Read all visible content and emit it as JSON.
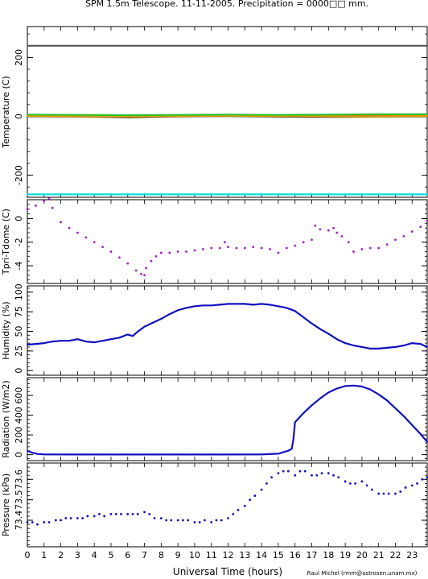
{
  "title": "SPM 1.5m Telescope. 11-11-2005. Precipitation = 0000□□ mm.",
  "xlabel": "Universal Time (hours)",
  "credit": "Raul Michel (rmm@astrosen.unam.mx)",
  "x_ticks": [
    "0",
    "1",
    "2",
    "3",
    "4",
    "5",
    "6",
    "7",
    "8",
    "9",
    "10",
    "11",
    "12",
    "13",
    "14",
    "15",
    "16",
    "17",
    "18",
    "19",
    "20",
    "21",
    "22",
    "23"
  ],
  "chart_data": [
    {
      "type": "line",
      "ylabel": "Temperature (C)",
      "ylim": [
        -275,
        305
      ],
      "y_ticks": [
        -200,
        0,
        200
      ],
      "xlim": [
        0,
        23.9
      ],
      "series": [
        {
          "color": "#555555",
          "x": [
            0,
            23.9
          ],
          "y": [
            240,
            240
          ]
        },
        {
          "color": "#00e0e0",
          "x": [
            0,
            23.9
          ],
          "y": [
            -265,
            -265
          ]
        },
        {
          "color": "#ff2020",
          "x": [
            0,
            3,
            6,
            9,
            12,
            15,
            18,
            21,
            23.9
          ],
          "y": [
            3,
            2,
            1,
            3,
            4,
            3,
            2,
            2,
            3
          ]
        },
        {
          "color": "#202020",
          "x": [
            0,
            3,
            6,
            9,
            12,
            15,
            18,
            21,
            23.9
          ],
          "y": [
            0,
            -1,
            -3,
            0,
            1,
            -1,
            -2,
            -1,
            0
          ]
        },
        {
          "color": "#e0a000",
          "x": [
            0,
            3,
            6,
            9,
            12,
            15,
            18,
            21,
            23.9
          ],
          "y": [
            1,
            0,
            -1,
            1,
            2,
            1,
            0,
            0,
            1
          ]
        },
        {
          "color": "#30c030",
          "x": [
            0,
            3,
            6,
            9,
            12,
            15,
            18,
            21,
            23.9
          ],
          "y": [
            6,
            5,
            4,
            5,
            6,
            5,
            6,
            7,
            7
          ]
        }
      ]
    },
    {
      "type": "scatter",
      "ylabel": "Tpri-Tdome (C)",
      "ylim": [
        -5.5,
        1.6
      ],
      "y_ticks": [
        -4,
        -2,
        0
      ],
      "xlim": [
        0,
        23.9
      ],
      "series": [
        {
          "color": "#a020c0",
          "x": [
            0,
            0.5,
            1.0,
            1.3,
            1.5,
            2.0,
            2.5,
            3.0,
            3.5,
            4.0,
            4.5,
            5.0,
            5.5,
            6.0,
            6.5,
            6.8,
            7.0,
            7.1,
            7.4,
            7.7,
            8.0,
            8.5,
            9.0,
            9.5,
            10.0,
            10.5,
            11.0,
            11.5,
            11.8,
            12.0,
            12.5,
            13.0,
            13.5,
            14.0,
            14.5,
            15.0,
            15.5,
            16.0,
            16.5,
            17.0,
            17.2,
            17.5,
            18.0,
            18.3,
            18.5,
            18.8,
            19.2,
            19.5,
            20.0,
            20.5,
            21.0,
            21.5,
            22.0,
            22.5,
            23.0,
            23.5,
            23.9
          ],
          "y": [
            0.8,
            1.1,
            1.5,
            1.7,
            0.9,
            -0.3,
            -0.8,
            -1.2,
            -1.6,
            -2.0,
            -2.4,
            -2.8,
            -3.3,
            -3.8,
            -4.4,
            -4.7,
            -4.8,
            -4.2,
            -3.6,
            -3.2,
            -2.9,
            -2.9,
            -2.8,
            -2.8,
            -2.7,
            -2.6,
            -2.5,
            -2.5,
            -2.0,
            -2.4,
            -2.5,
            -2.5,
            -2.4,
            -2.5,
            -2.6,
            -2.9,
            -2.5,
            -2.3,
            -2.0,
            -1.8,
            -0.6,
            -0.9,
            -1.0,
            -0.8,
            -1.2,
            -1.5,
            -2.0,
            -2.8,
            -2.6,
            -2.5,
            -2.5,
            -2.2,
            -1.8,
            -1.5,
            -1.1,
            -0.7,
            -0.2
          ]
        }
      ]
    },
    {
      "type": "line",
      "ylabel": "Humidity (%)",
      "ylim": [
        -6,
        108
      ],
      "y_ticks": [
        0,
        25,
        50,
        75,
        100
      ],
      "xlim": [
        0,
        23.9
      ],
      "series": [
        {
          "color": "#1010c0",
          "x": [
            0,
            0.5,
            1.0,
            1.5,
            2.0,
            2.5,
            3.0,
            3.5,
            4.0,
            4.5,
            5.0,
            5.5,
            6.0,
            6.3,
            6.5,
            7.0,
            7.5,
            8.0,
            8.5,
            9.0,
            9.5,
            10.0,
            10.5,
            11.0,
            11.5,
            12.0,
            12.5,
            13.0,
            13.5,
            14.0,
            14.5,
            15.0,
            15.5,
            16.0,
            16.5,
            17.0,
            17.5,
            18.0,
            18.5,
            19.0,
            19.5,
            20.0,
            20.5,
            21.0,
            21.5,
            22.0,
            22.5,
            23.0,
            23.5,
            23.9
          ],
          "y": [
            33,
            34,
            35,
            37,
            38,
            38,
            40,
            37,
            36,
            38,
            40,
            42,
            46,
            44,
            48,
            56,
            61,
            66,
            72,
            77,
            80,
            82,
            83,
            83,
            84,
            85,
            85,
            85,
            84,
            85,
            84,
            82,
            80,
            76,
            68,
            60,
            53,
            47,
            40,
            35,
            32,
            30,
            28,
            28,
            29,
            30,
            32,
            35,
            34,
            30
          ]
        }
      ]
    },
    {
      "type": "line",
      "ylabel": "Radiation (W/m2)",
      "ylim": [
        -60,
        780
      ],
      "y_ticks": [
        0,
        200,
        400,
        600
      ],
      "xlim": [
        0,
        23.9
      ],
      "series": [
        {
          "color": "#1010c0",
          "x": [
            0,
            0.3,
            0.6,
            1.0,
            3.0,
            6.0,
            9.0,
            12.0,
            14.0,
            15.0,
            15.3,
            15.6,
            15.8,
            15.9,
            16.0,
            16.5,
            17.0,
            17.5,
            18.0,
            18.5,
            19.0,
            19.5,
            20.0,
            20.5,
            21.0,
            21.5,
            22.0,
            22.5,
            23.0,
            23.5,
            23.9
          ],
          "y": [
            40,
            20,
            8,
            3,
            2,
            2,
            2,
            2,
            3,
            10,
            25,
            40,
            60,
            150,
            330,
            420,
            500,
            570,
            630,
            670,
            695,
            700,
            690,
            660,
            610,
            550,
            470,
            390,
            300,
            210,
            130
          ]
        }
      ]
    },
    {
      "type": "scatter",
      "ylabel": "Pressure (kPa)",
      "ylim": [
        73.27,
        73.68
      ],
      "y_ticks": [
        73.4,
        73.5,
        73.6
      ],
      "xlim": [
        0,
        23.9
      ],
      "series": [
        {
          "color": "#1010c0",
          "x": [
            0,
            0.3,
            0.6,
            1.0,
            1.3,
            1.7,
            2.0,
            2.3,
            2.6,
            3.0,
            3.3,
            3.6,
            4.0,
            4.3,
            4.6,
            5.0,
            5.3,
            5.6,
            6.0,
            6.3,
            6.6,
            7.0,
            7.3,
            7.6,
            8.0,
            8.3,
            8.6,
            9.0,
            9.3,
            9.6,
            10.0,
            10.3,
            10.6,
            11.0,
            11.3,
            11.6,
            12.0,
            12.3,
            12.6,
            13.0,
            13.3,
            13.6,
            14.0,
            14.3,
            14.6,
            15.0,
            15.3,
            15.6,
            16.0,
            16.3,
            16.6,
            17.0,
            17.3,
            17.6,
            18.0,
            18.3,
            18.6,
            19.0,
            19.3,
            19.6,
            20.0,
            20.3,
            20.6,
            21.0,
            21.3,
            21.6,
            22.0,
            22.3,
            22.6,
            23.0,
            23.3,
            23.6,
            23.9
          ],
          "y": [
            73.39,
            73.39,
            73.38,
            73.39,
            73.39,
            73.4,
            73.4,
            73.41,
            73.41,
            73.41,
            73.41,
            73.42,
            73.42,
            73.43,
            73.42,
            73.43,
            73.43,
            73.43,
            73.43,
            73.43,
            73.43,
            73.44,
            73.43,
            73.41,
            73.41,
            73.4,
            73.4,
            73.4,
            73.4,
            73.4,
            73.39,
            73.39,
            73.4,
            73.39,
            73.4,
            73.4,
            73.41,
            73.43,
            73.45,
            73.47,
            73.5,
            73.52,
            73.55,
            73.58,
            73.61,
            73.63,
            73.64,
            73.64,
            73.62,
            73.64,
            73.64,
            73.62,
            73.62,
            73.63,
            73.63,
            73.62,
            73.61,
            73.59,
            73.58,
            73.58,
            73.59,
            73.57,
            73.55,
            73.53,
            73.53,
            73.53,
            73.53,
            73.54,
            73.56,
            73.57,
            73.58,
            73.6,
            73.61
          ]
        }
      ]
    }
  ]
}
